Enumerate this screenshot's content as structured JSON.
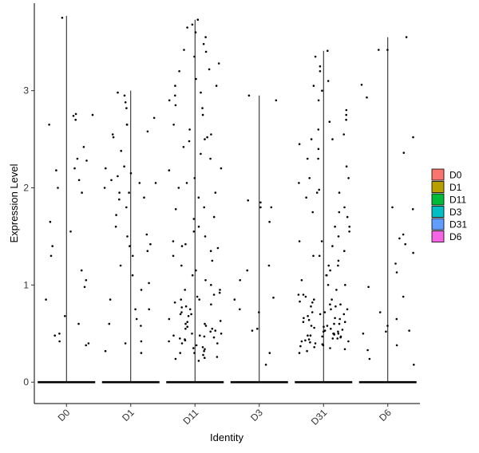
{
  "chart_data": {
    "type": "scatter",
    "subtype": "violin-jitter",
    "title": "",
    "xlabel": "Identity",
    "ylabel": "Expression Level",
    "ylim": [
      -0.22,
      3.9
    ],
    "yticks": [
      0,
      1,
      2,
      3
    ],
    "categories": [
      "D0",
      "D1",
      "D11",
      "D3",
      "D31",
      "D6"
    ],
    "grid": false,
    "legend_position": "right",
    "legend": [
      {
        "label": "D0",
        "color": "#F8766D"
      },
      {
        "label": "D1",
        "color": "#B79F00"
      },
      {
        "label": "D11",
        "color": "#00BA38"
      },
      {
        "label": "D3",
        "color": "#00BFC4"
      },
      {
        "label": "D31",
        "color": "#619CFF"
      },
      {
        "label": "D6",
        "color": "#F564E3"
      }
    ],
    "violin_max": [
      3.77,
      3.0,
      3.73,
      2.95,
      3.41,
      3.55
    ],
    "point_color": "#000000",
    "series": [
      {
        "name": "D0",
        "values": [
          2.2,
          2.18,
          2.74,
          2.75,
          2.76,
          2.7,
          2.65,
          2.28,
          2.3,
          2.42,
          2.08,
          2.0,
          1.95,
          1.65,
          1.55,
          1.4,
          1.3,
          1.15,
          1.05,
          0.98,
          0.85,
          0.68,
          0.6,
          0.5,
          0.48,
          0.42,
          0.4,
          0.38,
          3.75
        ]
      },
      {
        "name": "D1",
        "values": [
          2.65,
          2.58,
          2.52,
          2.55,
          2.38,
          2.22,
          2.15,
          2.05,
          1.95,
          1.9,
          1.72,
          1.5,
          1.42,
          1.35,
          1.2,
          1.1,
          1.02,
          0.95,
          0.85,
          0.75,
          0.6,
          0.58,
          0.4,
          0.3,
          2.98,
          2.95,
          2.88,
          2.82,
          2.72,
          2.65,
          2.2,
          2.12,
          2.08,
          2.05,
          2.0,
          1.95,
          1.88,
          1.8,
          1.6,
          1.52,
          1.4,
          1.3,
          0.75,
          0.65,
          0.42,
          0.32
        ]
      },
      {
        "name": "D11",
        "values": [
          3.73,
          3.68,
          3.6,
          3.48,
          3.42,
          3.35,
          3.28,
          3.2,
          3.12,
          3.05,
          2.98,
          2.9,
          2.82,
          2.75,
          2.6,
          2.55,
          2.5,
          2.42,
          2.3,
          2.2,
          2.1,
          2.0,
          1.9,
          1.8,
          1.7,
          1.6,
          1.5,
          1.45,
          1.38,
          1.3,
          1.2,
          1.1,
          1.0,
          0.95,
          0.9,
          0.85,
          0.8,
          0.75,
          0.7,
          0.65,
          0.6,
          0.58,
          0.55,
          0.52,
          0.5,
          0.48,
          0.46,
          0.44,
          0.42,
          0.4,
          0.38,
          0.36,
          0.34,
          0.32,
          0.3,
          0.28,
          0.26,
          0.25,
          0.24,
          0.22,
          0.45,
          0.47,
          0.5,
          0.55,
          0.6,
          0.62,
          0.68,
          0.72,
          0.78,
          0.82,
          0.88,
          0.92,
          1.05,
          1.15,
          1.25,
          1.35,
          1.42,
          1.55,
          1.68,
          1.78,
          1.95,
          2.05,
          2.18,
          2.35,
          2.48,
          2.65,
          2.85,
          2.95,
          3.05,
          3.22,
          3.4,
          3.55,
          3.65,
          0.3,
          0.35,
          0.4,
          0.43,
          0.48,
          0.53,
          0.57,
          0.63,
          0.7,
          0.77,
          0.85,
          0.95,
          1.4,
          2.52
        ]
      },
      {
        "name": "D3",
        "values": [
          2.95,
          2.9,
          1.87,
          1.85,
          1.8,
          1.8,
          1.65,
          1.2,
          1.15,
          1.05,
          0.87,
          0.85,
          0.75,
          0.72,
          0.55,
          0.53,
          0.3,
          0.18
        ]
      },
      {
        "name": "D31",
        "values": [
          3.41,
          3.35,
          3.25,
          3.2,
          3.1,
          3.05,
          2.8,
          2.75,
          2.68,
          2.6,
          2.55,
          2.5,
          2.45,
          2.4,
          2.3,
          2.22,
          2.1,
          2.05,
          1.98,
          1.95,
          1.9,
          1.8,
          1.75,
          1.7,
          1.6,
          1.55,
          1.5,
          1.45,
          1.4,
          1.35,
          1.3,
          1.25,
          1.2,
          1.15,
          1.1,
          1.05,
          1.0,
          0.95,
          0.9,
          0.85,
          0.82,
          0.8,
          0.78,
          0.75,
          0.72,
          0.7,
          0.68,
          0.66,
          0.64,
          0.62,
          0.6,
          0.58,
          0.56,
          0.54,
          0.52,
          0.5,
          0.49,
          0.48,
          0.47,
          0.46,
          0.45,
          0.44,
          0.43,
          0.42,
          0.41,
          0.4,
          0.39,
          0.38,
          0.37,
          0.36,
          0.35,
          0.34,
          0.32,
          0.3,
          0.48,
          0.5,
          0.52,
          0.55,
          0.58,
          0.62,
          0.65,
          0.7,
          0.75,
          0.8,
          0.85,
          0.9,
          1.0,
          1.1,
          1.2,
          1.3,
          1.45,
          1.6,
          1.75,
          1.95,
          2.1,
          2.3,
          2.5,
          2.7,
          2.9,
          3.0,
          0.42,
          0.45,
          0.47,
          0.5,
          0.53,
          0.57,
          0.6,
          0.66,
          0.72,
          0.78,
          0.83,
          0.88
        ]
      },
      {
        "name": "D6",
        "values": [
          3.55,
          3.42,
          3.42,
          3.06,
          2.93,
          2.52,
          2.36,
          1.8,
          1.78,
          1.52,
          1.48,
          1.42,
          1.33,
          1.22,
          1.13,
          0.98,
          0.88,
          0.72,
          0.65,
          0.58,
          0.53,
          0.52,
          0.5,
          0.38,
          0.33,
          0.24,
          0.18
        ]
      }
    ]
  }
}
